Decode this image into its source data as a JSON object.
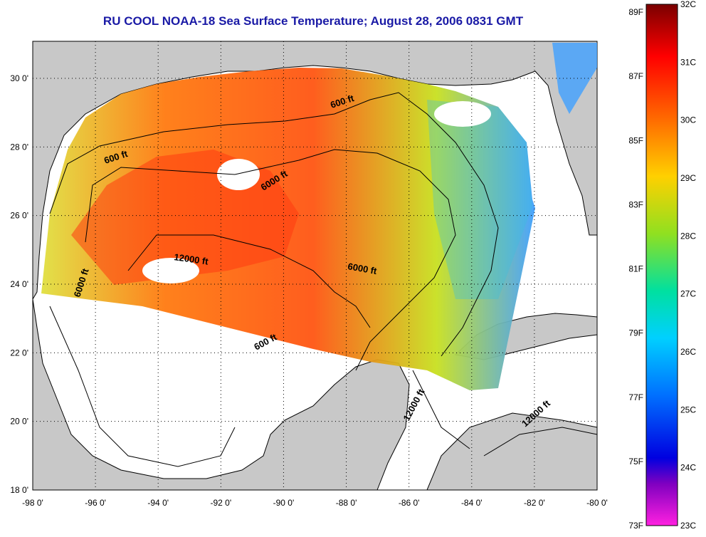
{
  "title": "RU COOL  NOAA-18  Sea Surface Temperature;  August 28, 2006 0831 GMT",
  "axes": {
    "x_ticks": [
      "-98 0'",
      "-96 0'",
      "-94 0'",
      "-92 0'",
      "-90 0'",
      "-88 0'",
      "-86 0'",
      "-84 0'",
      "-82 0'",
      "-80 0'"
    ],
    "y_ticks": [
      "30 0'",
      "28 0'",
      "26 0'",
      "24 0'",
      "22 0'",
      "20 0'",
      "18 0'"
    ]
  },
  "contour_labels": [
    {
      "text": "600 ft"
    },
    {
      "text": "600 ft"
    },
    {
      "text": "6000 ft"
    },
    {
      "text": "12000 ft"
    },
    {
      "text": "6000 ft"
    },
    {
      "text": "6000 ft"
    },
    {
      "text": "600 ft"
    },
    {
      "text": "12000 ft"
    },
    {
      "text": "12000 ft"
    }
  ],
  "colorbar": {
    "fahrenheit": [
      "89F",
      "87F",
      "85F",
      "83F",
      "81F",
      "79F",
      "77F",
      "75F",
      "73F"
    ],
    "celsius": [
      "32C",
      "31C",
      "30C",
      "29C",
      "28C",
      "27C",
      "26C",
      "25C",
      "24C",
      "23C"
    ]
  },
  "colors": {
    "land": "#c8c8c8",
    "nodata": "#ffffff",
    "title": "#1a1aa6"
  }
}
